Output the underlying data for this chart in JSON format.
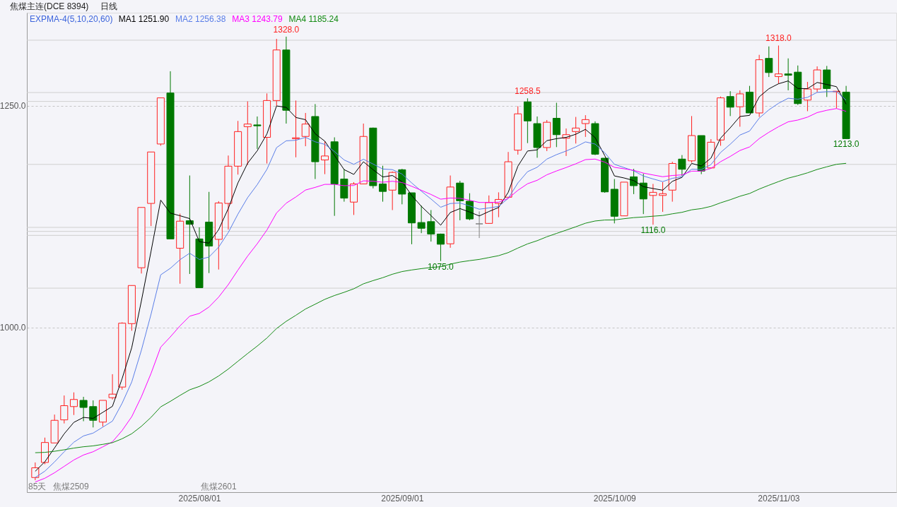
{
  "chart_data": {
    "type": "candlestick",
    "title": "焦煤主连(DCE 8394)",
    "subtitle": "日线",
    "legend_title": "EXPMA-4(5,10,20,60)",
    "grid": "y",
    "categories": [
      null,
      null,
      null,
      null,
      null,
      null,
      null,
      null,
      null,
      null,
      null,
      null,
      null,
      null,
      null,
      null,
      null,
      "2025/08/01",
      null,
      null,
      null,
      null,
      null,
      null,
      null,
      null,
      null,
      null,
      null,
      null,
      null,
      null,
      null,
      null,
      null,
      null,
      null,
      null,
      "2025/09/01",
      null,
      null,
      null,
      null,
      null,
      null,
      null,
      null,
      null,
      null,
      null,
      null,
      null,
      null,
      null,
      null,
      null,
      null,
      null,
      null,
      null,
      "2025/10/09",
      null,
      null,
      null,
      null,
      null,
      null,
      null,
      null,
      null,
      null,
      null,
      null,
      null,
      null,
      null,
      null,
      "2025/11/03",
      null,
      null,
      null,
      null,
      null,
      null,
      null
    ],
    "ohlc": [
      [
        831,
        848,
        828,
        842
      ],
      [
        848,
        876,
        846,
        870.5
      ],
      [
        870,
        902,
        870,
        895.5
      ],
      [
        896,
        923.5,
        892,
        912
      ],
      [
        911,
        927,
        901.5,
        919
      ],
      [
        918,
        922,
        894.5,
        910
      ],
      [
        911,
        918,
        887.5,
        895.5
      ],
      [
        893.5,
        918,
        888.5,
        918
      ],
      [
        921,
        947.5,
        919,
        925
      ],
      [
        933,
        1006,
        930,
        1005
      ],
      [
        1004.5,
        1047.5,
        996.5,
        1047.5
      ],
      [
        1067.5,
        1135.5,
        1061,
        1135.5
      ],
      [
        1140,
        1198,
        1114.5,
        1198
      ],
      [
        1207,
        1259,
        1205,
        1259
      ],
      [
        1264.5,
        1289,
        1100,
        1100
      ],
      [
        1089.5,
        1128.5,
        1049.5,
        1120
      ],
      [
        1120.5,
        1171.5,
        1060.5,
        1116.5
      ],
      [
        1100,
        1113,
        1045,
        1045
      ],
      [
        1119,
        1153,
        1061.5,
        1092
      ],
      [
        1099.5,
        1142.5,
        1065.5,
        1140.5
      ],
      [
        1140,
        1194,
        1110.5,
        1182
      ],
      [
        1182,
        1233,
        1172.5,
        1221
      ],
      [
        1226.5,
        1255,
        1183.5,
        1229.5
      ],
      [
        1228.5,
        1238,
        1201.5,
        1227.5
      ],
      [
        1214.5,
        1264,
        1185,
        1256
      ],
      [
        1256,
        1325.5,
        1250,
        1313
      ],
      [
        1313,
        1328,
        1230,
        1245
      ],
      [
        1213,
        1256,
        1192,
        1214
      ],
      [
        1215.5,
        1242,
        1204.5,
        1229.5
      ],
      [
        1238,
        1252,
        1167.5,
        1187
      ],
      [
        1189,
        1210,
        1173,
        1193.5
      ],
      [
        1209.5,
        1214.5,
        1126,
        1162
      ],
      [
        1167.5,
        1178.5,
        1142,
        1146
      ],
      [
        1141.5,
        1164,
        1127,
        1162
      ],
      [
        1162,
        1230,
        1162,
        1215.5
      ],
      [
        1225,
        1225.5,
        1157,
        1160
      ],
      [
        1162,
        1182.5,
        1142,
        1153.5
      ],
      [
        1155,
        1176,
        1132.5,
        1175
      ],
      [
        1178,
        1179,
        1139,
        1150.5
      ],
      [
        1152,
        1152,
        1094,
        1118
      ],
      [
        1118.5,
        1137.5,
        1106.5,
        1112
      ],
      [
        1119.5,
        1132.5,
        1097,
        1105.5
      ],
      [
        1105.5,
        1106,
        1075,
        1094
      ],
      [
        1094.5,
        1171.5,
        1090,
        1158.5
      ],
      [
        1163,
        1165.5,
        1121,
        1143
      ],
      [
        1142.5,
        1151.5,
        1121,
        1122.5
      ],
      [
        1117,
        1131,
        1101,
        1117
      ],
      [
        1117.5,
        1149,
        1117,
        1141
      ],
      [
        1140,
        1152.5,
        1124.5,
        1144.5
      ],
      [
        1147,
        1198,
        1147,
        1187
      ],
      [
        1200,
        1249.5,
        1195,
        1241
      ],
      [
        1254.5,
        1258.5,
        1208,
        1233
      ],
      [
        1230,
        1238,
        1191.5,
        1203
      ],
      [
        1203,
        1234,
        1199,
        1231.5
      ],
      [
        1236,
        1253.5,
        1203.5,
        1217.5
      ],
      [
        1213.5,
        1224.5,
        1193.5,
        1217.5
      ],
      [
        1221,
        1237.5,
        1207.5,
        1225
      ],
      [
        1230,
        1239.5,
        1215,
        1234.5
      ],
      [
        1230,
        1232.5,
        1194.5,
        1195.5
      ],
      [
        1191,
        1191,
        1152,
        1153
      ],
      [
        1156,
        1167.5,
        1117.5,
        1125.5
      ],
      [
        1126,
        1164,
        1126,
        1164
      ],
      [
        1170,
        1179,
        1150.5,
        1160
      ],
      [
        1163,
        1173.5,
        1128,
        1145
      ],
      [
        1149,
        1162,
        1116,
        1152.5
      ],
      [
        1149,
        1164,
        1130.5,
        1151
      ],
      [
        1155,
        1187,
        1142,
        1185
      ],
      [
        1190,
        1194.5,
        1171,
        1178.5
      ],
      [
        1188,
        1238.5,
        1186,
        1216.5
      ],
      [
        1216.5,
        1216.5,
        1173,
        1176.5
      ],
      [
        1180,
        1212.5,
        1179.5,
        1209
      ],
      [
        1211.5,
        1260.5,
        1205,
        1259
      ],
      [
        1260.5,
        1266.5,
        1238.5,
        1248.5
      ],
      [
        1249,
        1267.5,
        1226.5,
        1263.5
      ],
      [
        1265.5,
        1272.5,
        1242,
        1242
      ],
      [
        1242,
        1307.5,
        1237.5,
        1302
      ],
      [
        1303.5,
        1317,
        1282.5,
        1287.5
      ],
      [
        1283,
        1318,
        1275,
        1286
      ],
      [
        1286,
        1303.5,
        1267.5,
        1284.5
      ],
      [
        1288,
        1295.5,
        1251,
        1252.5
      ],
      [
        1256.5,
        1277,
        1244,
        1269
      ],
      [
        1269,
        1294.5,
        1265.5,
        1290.5
      ],
      [
        1290.5,
        1295,
        1260,
        1269.5
      ],
      [
        1266,
        1266.5,
        1247,
        1266.5
      ],
      [
        1265.5,
        1272.5,
        1213,
        1213
      ]
    ],
    "colors": [
      "#ff2020",
      "#ff2020",
      "#ff2020",
      "#ff2020",
      "#ff2020",
      "#007800",
      "#007800",
      "#ff2020",
      "#ff2020",
      "#ff2020",
      "#ff2020",
      "#ff2020",
      "#ff2020",
      "#ff2020",
      "#007800",
      "#ff2020",
      "#007800",
      "#007800",
      "#007800",
      "#ff2020",
      "#ff2020",
      "#ff2020",
      "#ff2020",
      "#007800",
      "#ff2020",
      "#ff2020",
      "#007800",
      "#ff2020",
      "#ff2020",
      "#007800",
      "#ff2020",
      "#007800",
      "#007800",
      "#ff2020",
      "#ff2020",
      "#007800",
      "#007800",
      "#ff2020",
      "#007800",
      "#007800",
      "#007800",
      "#007800",
      "#007800",
      "#ff2020",
      "#007800",
      "#007800",
      "#808080",
      "#ff2020",
      "#ff2020",
      "#ff2020",
      "#ff2020",
      "#007800",
      "#007800",
      "#ff2020",
      "#007800",
      "#ff2020",
      "#ff2020",
      "#ff2020",
      "#007800",
      "#007800",
      "#007800",
      "#ff2020",
      "#007800",
      "#007800",
      "#ff2020",
      "#ff2020",
      "#ff2020",
      "#007800",
      "#ff2020",
      "#007800",
      "#ff2020",
      "#ff2020",
      "#007800",
      "#ff2020",
      "#007800",
      "#ff2020",
      "#007800",
      "#ff2020",
      "#007800",
      "#007800",
      "#ff2020",
      "#ff2020",
      "#007800",
      "#ff2020",
      "#007800"
    ],
    "series": [
      {
        "name": "MA1 1251.90",
        "type": "line",
        "color": "#000000",
        "values": [
          838,
          848.8,
          864.4,
          880.3,
          893.2,
          898.8,
          897.7,
          904.5,
          911.3,
          942.5,
          977.5,
          1030.2,
          1086.1,
          1143.7,
          1129.1,
          1126.1,
          1122.9,
          1096.9,
          1095.3,
          1110.4,
          1134.3,
          1163.2,
          1185.3,
          1199.4,
          1218.3,
          1249.9,
          1248.3,
          1236.9,
          1234.4,
          1218.6,
          1210.2,
          1194.1,
          1178.1,
          1172.7,
          1187.0,
          1178.0,
          1169.8,
          1171.5,
          1164.5,
          1149.0,
          1136.7,
          1126.3,
          1115.5,
          1129.8,
          1134.2,
          1130.3,
          1125.9,
          1130.9,
          1135.4,
          1152.6,
          1182.1,
          1199.1,
          1200.4,
          1210.8,
          1213.0,
          1214.5,
          1218.0,
          1223.5,
          1214.2,
          1193.8,
          1171.0,
          1168.7,
          1165.8,
          1158.9,
          1156.8,
          1154.9,
          1164.9,
          1169.4,
          1185.1,
          1182.2,
          1191.1,
          1213.7,
          1225.3,
          1238.0,
          1239.3,
          1260.2,
          1269.3,
          1274.9,
          1278.1,
          1269.6,
          1269.4,
          1276.4,
          1274.1,
          1271.6,
          1251.9
        ]
      },
      {
        "name": "MA2 1256.38",
        "type": "line",
        "color": "#5a7ee8",
        "values": [
          831,
          838.2,
          848.6,
          860.1,
          870.8,
          877.9,
          881.1,
          887.8,
          894.6,
          914.7,
          938.8,
          974.6,
          1015.2,
          1059.5,
          1066.9,
          1076.6,
          1083.9,
          1076.8,
          1079.6,
          1090.7,
          1107.3,
          1128.0,
          1146.5,
          1161.2,
          1178.4,
          1202.9,
          1210.6,
          1211.2,
          1214.5,
          1209.5,
          1206.6,
          1198.5,
          1189.0,
          1184.1,
          1189.8,
          1184.4,
          1178.8,
          1178.1,
          1173.1,
          1163.1,
          1153.8,
          1145.0,
          1135.7,
          1139.9,
          1140.5,
          1137.2,
          1133.5,
          1134.9,
          1136.6,
          1145.8,
          1163.1,
          1175.8,
          1180.8,
          1190.0,
          1195.0,
          1199.1,
          1203.8,
          1209.4,
          1206.9,
          1197.1,
          1184.1,
          1180.4,
          1176.7,
          1170.9,
          1167.6,
          1164.6,
          1168.3,
          1170.2,
          1178.6,
          1178.2,
          1183.8,
          1197.5,
          1206.8,
          1217.1,
          1221.6,
          1236.2,
          1245.5,
          1252.9,
          1258.6,
          1257.5,
          1259.6,
          1265.2,
          1266.0,
          1266.1,
          1256.4
        ]
      },
      {
        "name": "MA3 1243.79",
        "type": "line",
        "color": "#ff00ff",
        "values": [
          826,
          830.2,
          836.4,
          843.6,
          850.8,
          856.4,
          860.1,
          865.6,
          871.3,
          884.0,
          899.6,
          922.1,
          948.4,
          978.0,
          989.6,
          1002.0,
          1012.9,
          1016.0,
          1023.2,
          1034.4,
          1048.5,
          1064.9,
          1080.6,
          1094.6,
          1110.0,
          1129.3,
          1140.3,
          1147.3,
          1155.1,
          1158.1,
          1161.5,
          1161.5,
          1160.0,
          1160.2,
          1165.5,
          1165.0,
          1163.9,
          1165.0,
          1163.6,
          1159.3,
          1154.8,
          1150.1,
          1144.8,
          1146.1,
          1145.8,
          1143.6,
          1141.1,
          1141.1,
          1141.4,
          1145.7,
          1154.8,
          1162.2,
          1166.1,
          1172.3,
          1176.6,
          1180.5,
          1184.7,
          1189.4,
          1190.0,
          1186.5,
          1180.7,
          1179.1,
          1177.3,
          1174.2,
          1172.1,
          1170.1,
          1171.5,
          1172.2,
          1176.4,
          1176.4,
          1179.5,
          1187.1,
          1193.0,
          1199.7,
          1203.7,
          1213.1,
          1220.2,
          1226.5,
          1232.0,
          1234.0,
          1237.3,
          1242.4,
          1245.0,
          1247.0,
          1243.8
        ]
      },
      {
        "name": "MA4 1185.24",
        "type": "line",
        "color": "#128a12",
        "values": [
          859,
          859.4,
          860.6,
          862.3,
          864.2,
          865.7,
          866.7,
          868.4,
          870.3,
          874.7,
          880.4,
          888.8,
          898.9,
          910.7,
          916.9,
          923.6,
          929.9,
          933.7,
          938.9,
          945.5,
          953.3,
          962.1,
          970.8,
          979.2,
          988.3,
          999.0,
          1007.1,
          1013.9,
          1021.0,
          1026.4,
          1031.9,
          1036.2,
          1039.8,
          1043.8,
          1049.4,
          1053.0,
          1056.3,
          1060.2,
          1063.2,
          1065.0,
          1066.5,
          1067.8,
          1068.7,
          1071.6,
          1073.9,
          1075.5,
          1076.9,
          1079.0,
          1081.1,
          1084.6,
          1089.7,
          1094.4,
          1098.0,
          1102.4,
          1106.2,
          1109.9,
          1113.7,
          1117.7,
          1120.2,
          1121.3,
          1121.4,
          1122.8,
          1124.0,
          1124.7,
          1125.6,
          1126.4,
          1128.3,
          1130.0,
          1132.8,
          1134.2,
          1136.7,
          1140.7,
          1144.2,
          1148.1,
          1151.2,
          1156.2,
          1160.5,
          1164.6,
          1168.5,
          1171.3,
          1174.5,
          1178.3,
          1181.3,
          1184.1,
          1185.2
        ]
      }
    ],
    "ylim": [
      814.5,
      1355
    ],
    "yticks": [
      {
        "value": 1000,
        "label": "1000.0"
      },
      {
        "value": 1250,
        "label": "1250.0"
      }
    ],
    "ref_lines": [
      {
        "axis": "y",
        "value": 1324,
        "color": "#cfcfcf"
      },
      {
        "axis": "y",
        "value": 1265,
        "color": "#cfcfcf"
      },
      {
        "axis": "y",
        "value": 1255,
        "color": "#cfcfcf"
      },
      {
        "axis": "y",
        "value": 1184,
        "color": "#cfcfcf"
      },
      {
        "axis": "y",
        "value": 1113,
        "color": "#cfcfcf"
      },
      {
        "axis": "y",
        "value": 1108.5,
        "color": "#cfcfcf"
      },
      {
        "axis": "y",
        "value": 1104,
        "color": "#cfcfcf"
      },
      {
        "axis": "y",
        "value": 1044.5,
        "color": "#cfcfcf"
      }
    ],
    "annotations": [
      "85天",
      "焦煤2509",
      "焦煤2601",
      {
        "text": "1328.0",
        "y": 1328
      },
      {
        "text": "1258.5",
        "y": 1258.5
      },
      {
        "text": "1318.0",
        "y": 1318
      },
      {
        "text": "1075.0",
        "y": 1075
      },
      {
        "text": "1116.0",
        "y": 1116
      },
      {
        "text": "1213.0",
        "y": 1213
      }
    ]
  }
}
